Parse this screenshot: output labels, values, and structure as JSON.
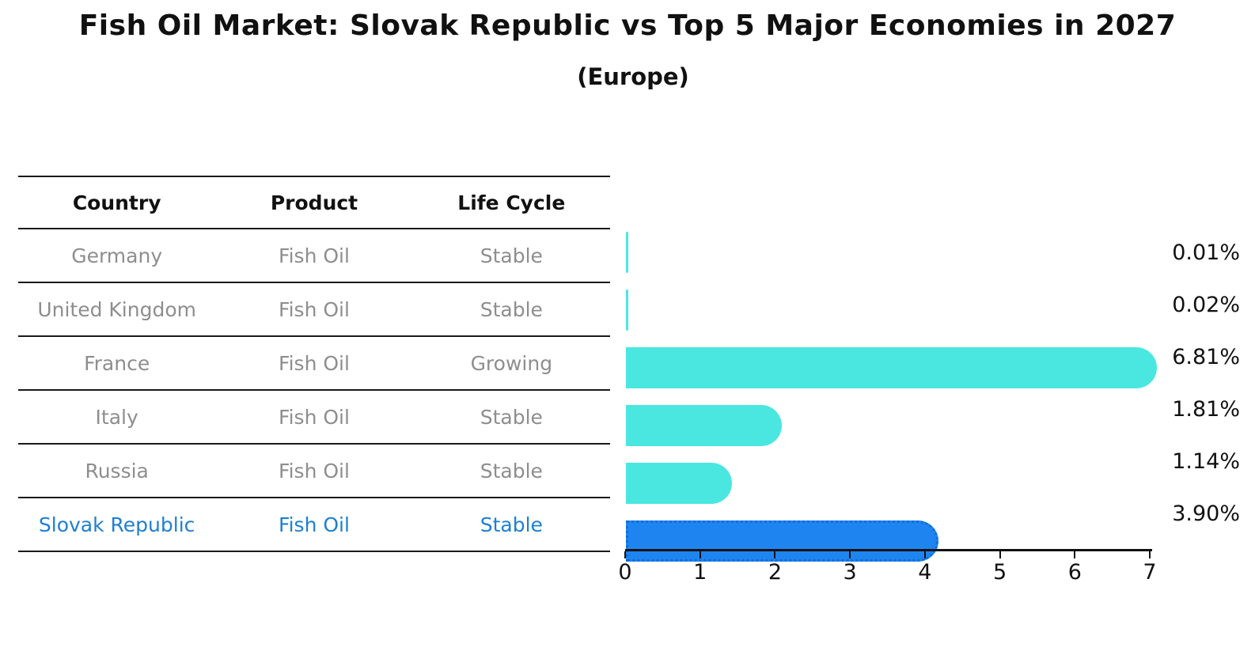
{
  "title": "Fish Oil Market: Slovak Republic vs Top 5 Major Economies in 2027",
  "subtitle": "(Europe)",
  "table": {
    "headers": [
      "Country",
      "Product",
      "Life Cycle"
    ],
    "rows": [
      {
        "country": "Germany",
        "product": "Fish Oil",
        "life_cycle": "Stable",
        "highlight": false
      },
      {
        "country": "United Kingdom",
        "product": "Fish Oil",
        "life_cycle": "Stable",
        "highlight": false
      },
      {
        "country": "France",
        "product": "Fish Oil",
        "life_cycle": "Growing",
        "highlight": false
      },
      {
        "country": "Italy",
        "product": "Fish Oil",
        "life_cycle": "Stable",
        "highlight": false
      },
      {
        "country": "Russia",
        "product": "Fish Oil",
        "life_cycle": "Stable",
        "highlight": false
      },
      {
        "country": "Slovak Republic",
        "product": "Fish Oil",
        "life_cycle": "Stable",
        "highlight": true
      }
    ]
  },
  "chart_data": {
    "type": "bar",
    "orientation": "horizontal",
    "title": "Fish Oil Market: Slovak Republic vs Top 5 Major Economies in 2027",
    "subtitle": "(Europe)",
    "categories": [
      "Germany",
      "United Kingdom",
      "France",
      "Italy",
      "Russia",
      "Slovak Republic"
    ],
    "values": [
      0.01,
      0.02,
      6.81,
      1.81,
      1.14,
      3.9
    ],
    "labels": [
      "0.01%",
      "0.02%",
      "6.81%",
      "1.81%",
      "1.14%",
      "3.90%"
    ],
    "x_ticks": [
      0,
      1,
      2,
      3,
      4,
      5,
      6,
      7
    ],
    "xlim": [
      0,
      7
    ],
    "grid": false,
    "legend_position": "none",
    "bar_color": "#4AE7E0",
    "highlight_color": "#1E85F0",
    "highlight_border_color": "#0D6EDB",
    "highlight_index": 5
  },
  "colors": {
    "text": "#111111",
    "muted_text": "#8E8E8E",
    "highlight_text": "#1E7FD0",
    "line": "#1A1A1A",
    "background": "#FFFFFF"
  }
}
